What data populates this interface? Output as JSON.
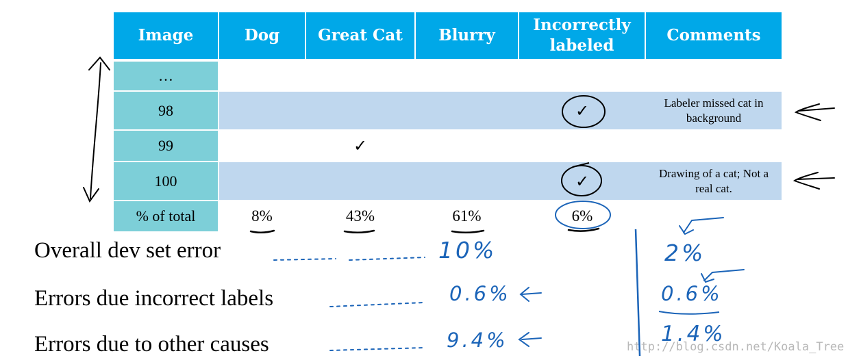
{
  "table": {
    "headers": [
      "Image",
      "Dog",
      "Great Cat",
      "Blurry",
      "Incorrectly labeled",
      "Comments"
    ],
    "rows": [
      {
        "image": "…",
        "great_cat": "",
        "incorrect": "",
        "comment": ""
      },
      {
        "image": "98",
        "great_cat": "",
        "incorrect": "✓",
        "comment": "Labeler missed cat in background"
      },
      {
        "image": "99",
        "great_cat": "✓",
        "incorrect": "",
        "comment": ""
      },
      {
        "image": "100",
        "great_cat": "",
        "incorrect": "✓",
        "comment": "Drawing of a cat; Not a real cat."
      }
    ],
    "total_label": "% of total",
    "totals": [
      "8%",
      "43%",
      "61%",
      "6%"
    ]
  },
  "errors": {
    "overall_label": "Overall dev set error",
    "incorrect_label": "Errors due incorrect labels",
    "other_label": "Errors due to other causes",
    "overall_value": "10%",
    "incorrect_value": "0.6%",
    "other_value": "9.4%",
    "alt_overall": "2%",
    "alt_incorrect": "0.6%",
    "alt_other": "1.4%"
  },
  "watermark": "http://blog.csdn.net/Koala_Tree",
  "colors": {
    "header": "#00a8e8",
    "image_col": "#7dcfd8",
    "row_band": "#bfd7ee",
    "ink": "#1b64b8"
  }
}
